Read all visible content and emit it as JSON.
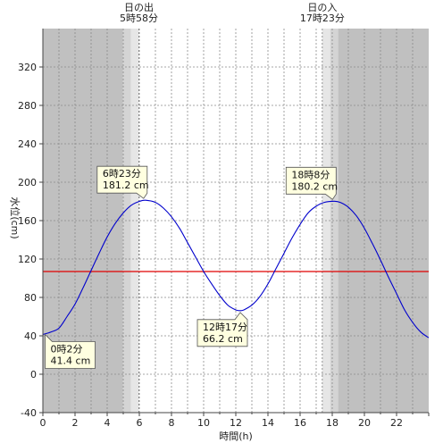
{
  "chart_data": {
    "type": "line",
    "xlabel": "時間(h)",
    "ylabel": "水位(cm)",
    "xlim": [
      0,
      24
    ],
    "ylim": [
      -40,
      360
    ],
    "x_ticks": [
      0,
      2,
      4,
      6,
      8,
      10,
      12,
      14,
      16,
      18,
      20,
      22
    ],
    "y_ticks": [
      -40,
      0,
      40,
      80,
      120,
      160,
      200,
      240,
      280,
      320
    ],
    "grid": true,
    "reference_line": {
      "value": 107,
      "color": "#e00000"
    },
    "series": [
      {
        "color": "#0000cc",
        "x": [
          0,
          0.5,
          1,
          1.5,
          2,
          2.5,
          3,
          3.5,
          4,
          4.5,
          5,
          5.5,
          6,
          6.38,
          7,
          7.5,
          8,
          8.5,
          9,
          9.5,
          10,
          10.5,
          11,
          11.5,
          12,
          12.28,
          12.5,
          13,
          13.5,
          14,
          14.5,
          15,
          15.5,
          16,
          16.5,
          17,
          17.5,
          18.13,
          18.5,
          19,
          19.5,
          20,
          20.5,
          21,
          21.5,
          22,
          22.5,
          23,
          23.5,
          24
        ],
        "y": [
          41.4,
          44,
          48,
          60,
          73,
          90,
          108,
          126,
          143,
          157,
          168,
          176,
          180,
          181.2,
          179,
          173,
          164,
          152,
          137,
          122,
          107,
          94,
          82,
          72,
          67,
          66.2,
          67,
          72,
          81,
          94,
          110,
          126,
          142,
          156,
          168,
          175,
          179,
          180.2,
          179,
          174,
          165,
          152,
          136,
          119,
          101,
          84,
          67,
          54,
          44,
          38
        ]
      }
    ],
    "sun": {
      "sunrise": {
        "hour": 5.97,
        "label": "日の出",
        "time": "5時58分"
      },
      "sunset": {
        "hour": 17.38,
        "label": "日の入",
        "time": "17時23分"
      }
    },
    "annotations": [
      {
        "x": 0.03,
        "y": 41.4,
        "time": "0時2分",
        "value": "41.4 cm"
      },
      {
        "x": 6.38,
        "y": 181.2,
        "time": "6時23分",
        "value": "181.2 cm"
      },
      {
        "x": 12.28,
        "y": 66.2,
        "time": "12時17分",
        "value": "66.2 cm"
      },
      {
        "x": 18.13,
        "y": 180.2,
        "time": "18時8分",
        "value": "180.2 cm"
      }
    ],
    "colors": {
      "night": "#c0c0c0",
      "twilight_outer": "#d4d4d4",
      "twilight_inner": "#e6e6e6",
      "day": "#ffffff",
      "callout_bg": "#ffffe0"
    }
  }
}
